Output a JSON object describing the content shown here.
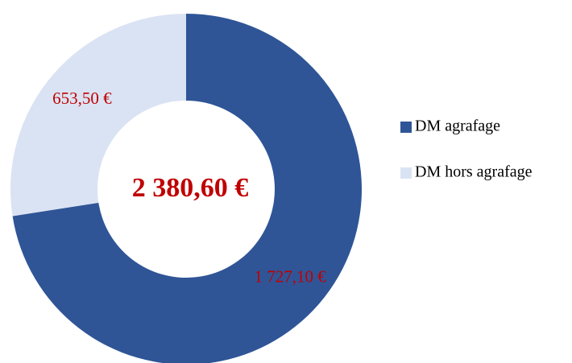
{
  "chart_data": {
    "type": "donut",
    "categories": [
      "DM agrafage",
      "DM hors agrafage"
    ],
    "values": [
      1727.1,
      653.5
    ],
    "value_labels": [
      "1 727,10 €",
      "653,50 €"
    ],
    "colors": [
      "#2F5597",
      "#DAE3F3"
    ],
    "center_label": "2 380,60 €",
    "legend": "right"
  }
}
